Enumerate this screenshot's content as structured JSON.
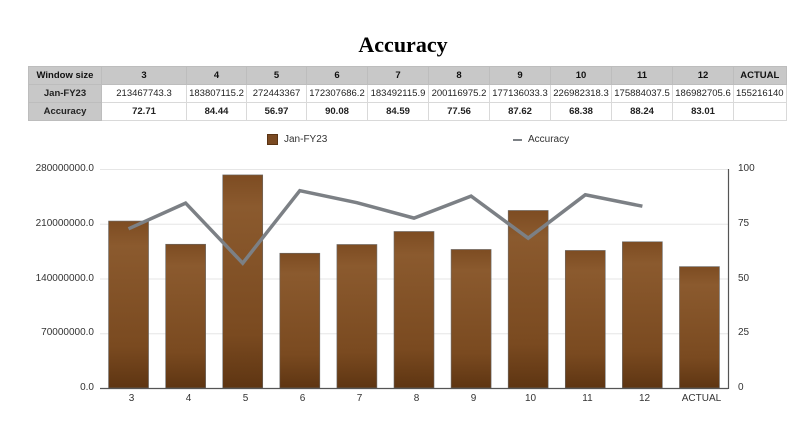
{
  "title": "Accuracy",
  "table": {
    "header_label": "Window size",
    "columns": [
      "3",
      "4",
      "5",
      "6",
      "7",
      "8",
      "9",
      "10",
      "11",
      "12",
      "ACTUAL"
    ],
    "rows": [
      {
        "label": "Jan-FY23",
        "values": [
          "213467743.3",
          "183807115.2",
          "272443367",
          "172307686.2",
          "183492115.9",
          "200116975.2",
          "177136033.3",
          "226982318.3",
          "175884037.5",
          "186982705.6",
          "155216140"
        ]
      },
      {
        "label": "Accuracy",
        "values": [
          "72.71",
          "84.44",
          "56.97",
          "90.08",
          "84.59",
          "77.56",
          "87.62",
          "68.38",
          "88.24",
          "83.01",
          ""
        ]
      }
    ]
  },
  "legend": {
    "bar_label": "Jan-FY23",
    "line_label": "Accuracy"
  },
  "colors": {
    "bar": "#7a4a22",
    "bar_light": "#8b5a2e",
    "bar_dark": "#5e3512",
    "line": "#7c8085",
    "grid": "#e6e6e6",
    "axis": "#555555"
  },
  "axes": {
    "left_ticks": [
      "280000000.0",
      "210000000.0",
      "140000000.0",
      "70000000.0",
      "0.0"
    ],
    "right_ticks": [
      "100",
      "75",
      "50",
      "25",
      "0"
    ]
  },
  "chart_data": {
    "type": "bar",
    "title": "Accuracy",
    "categories": [
      "3",
      "4",
      "5",
      "6",
      "7",
      "8",
      "9",
      "10",
      "11",
      "12",
      "ACTUAL"
    ],
    "series": [
      {
        "name": "Jan-FY23",
        "type": "bar",
        "axis": "left",
        "values": [
          213467743.3,
          183807115.2,
          272443367,
          172307686.2,
          183492115.9,
          200116975.2,
          177136033.3,
          226982318.3,
          175884037.5,
          186982705.6,
          155216140
        ]
      },
      {
        "name": "Accuracy",
        "type": "line",
        "axis": "right",
        "values": [
          72.71,
          84.44,
          56.97,
          90.08,
          84.59,
          77.56,
          87.62,
          68.38,
          88.24,
          83.01,
          null
        ]
      }
    ],
    "xlabel": "",
    "ylabel": "",
    "ylim": [
      0,
      280000000
    ],
    "y2lim": [
      0,
      100
    ],
    "grid": true,
    "legend_position": "top"
  }
}
